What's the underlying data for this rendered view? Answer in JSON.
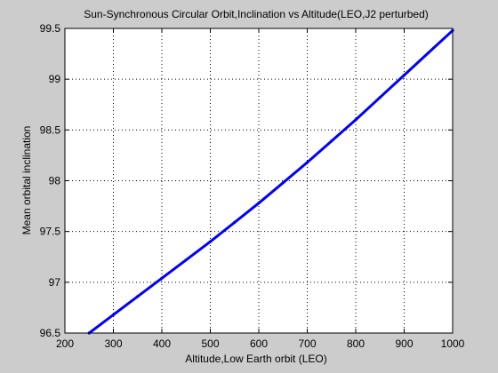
{
  "chart_data": {
    "type": "line",
    "title": "Sun-Synchronous Circular Orbit,Inclination vs Altitude(LEO,J2 perturbed)",
    "xlabel": "Altitude,Low Earth orbit (LEO)",
    "ylabel": "Mean orbital inclination",
    "xlim": [
      200,
      1000
    ],
    "ylim": [
      96.5,
      99.5
    ],
    "x_ticks": [
      200,
      300,
      400,
      500,
      600,
      700,
      800,
      900,
      1000
    ],
    "x_tick_labels": [
      "200",
      "300",
      "400",
      "500",
      "600",
      "700",
      "800",
      "900",
      "1000"
    ],
    "y_ticks": [
      96.5,
      97,
      97.5,
      98,
      98.5,
      99,
      99.5
    ],
    "y_tick_labels": [
      "96.5",
      "97",
      "97.5",
      "98",
      "98.5",
      "99",
      "99.5"
    ],
    "grid": "dotted",
    "series": [
      {
        "x": [
          250,
          300,
          350,
          400,
          450,
          500,
          550,
          600,
          650,
          700,
          750,
          800,
          850,
          900,
          950,
          1000
        ],
        "y": [
          96.5,
          96.68,
          96.86,
          97.04,
          97.22,
          97.4,
          97.59,
          97.78,
          97.98,
          98.18,
          98.39,
          98.6,
          98.82,
          99.04,
          99.26,
          99.48
        ],
        "color": "#0000ff"
      }
    ]
  }
}
